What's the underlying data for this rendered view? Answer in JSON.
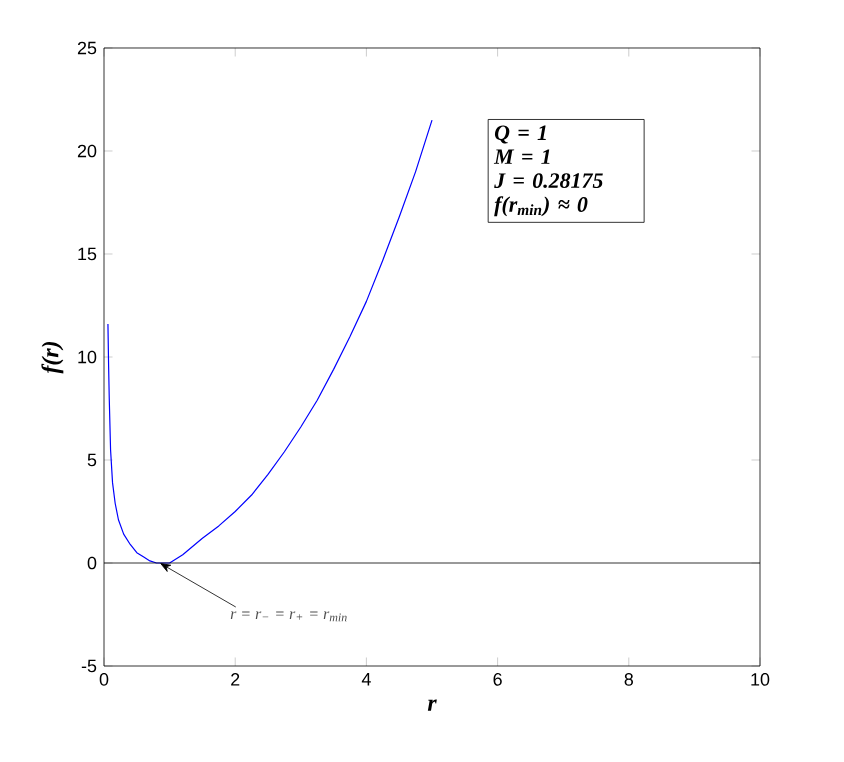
{
  "chart_data": {
    "type": "line",
    "xlabel": "r",
    "ylabel": "f(r)",
    "x": [
      0.06,
      0.07,
      0.08,
      0.1,
      0.13,
      0.17,
      0.22,
      0.3,
      0.4,
      0.5,
      0.6,
      0.7,
      0.8,
      0.9,
      1.0,
      1.2,
      1.5,
      1.75,
      2.0,
      2.25,
      2.5,
      2.75,
      3.0,
      3.25,
      3.5,
      3.75,
      4.0,
      4.25,
      4.5,
      4.75,
      5.0
    ],
    "series": [
      {
        "color": "#0000ff",
        "values": [
          11.6,
          9.6,
          8.0,
          5.5,
          3.9,
          2.9,
          2.1,
          1.4,
          0.9,
          0.5,
          0.3,
          0.1,
          0.0,
          0.0,
          0.0,
          0.4,
          1.2,
          1.8,
          2.5,
          3.3,
          4.3,
          5.4,
          6.6,
          7.9,
          9.4,
          11.0,
          12.7,
          14.7,
          16.8,
          19.0,
          21.5
        ]
      }
    ],
    "xlim": [
      0,
      10
    ],
    "ylim": [
      -5,
      25
    ],
    "xticks": [
      0,
      2,
      4,
      6,
      8,
      10
    ],
    "yticks": [
      -5,
      0,
      5,
      10,
      15,
      20,
      25
    ],
    "marker": "none",
    "line_style": "solid",
    "grid": false,
    "ref_lines": [
      {
        "axis": "y",
        "value": 0,
        "color": "#000000"
      }
    ],
    "annotations": [
      {
        "text": "r = r$_{−}$ = r$_{+}$ = r$_{min}$",
        "x": 0.85,
        "y": 0
      },
      "Q = 1",
      "M = 1",
      "J = 0.28175",
      "f(r$_{min}$) ≈ 0"
    ]
  }
}
